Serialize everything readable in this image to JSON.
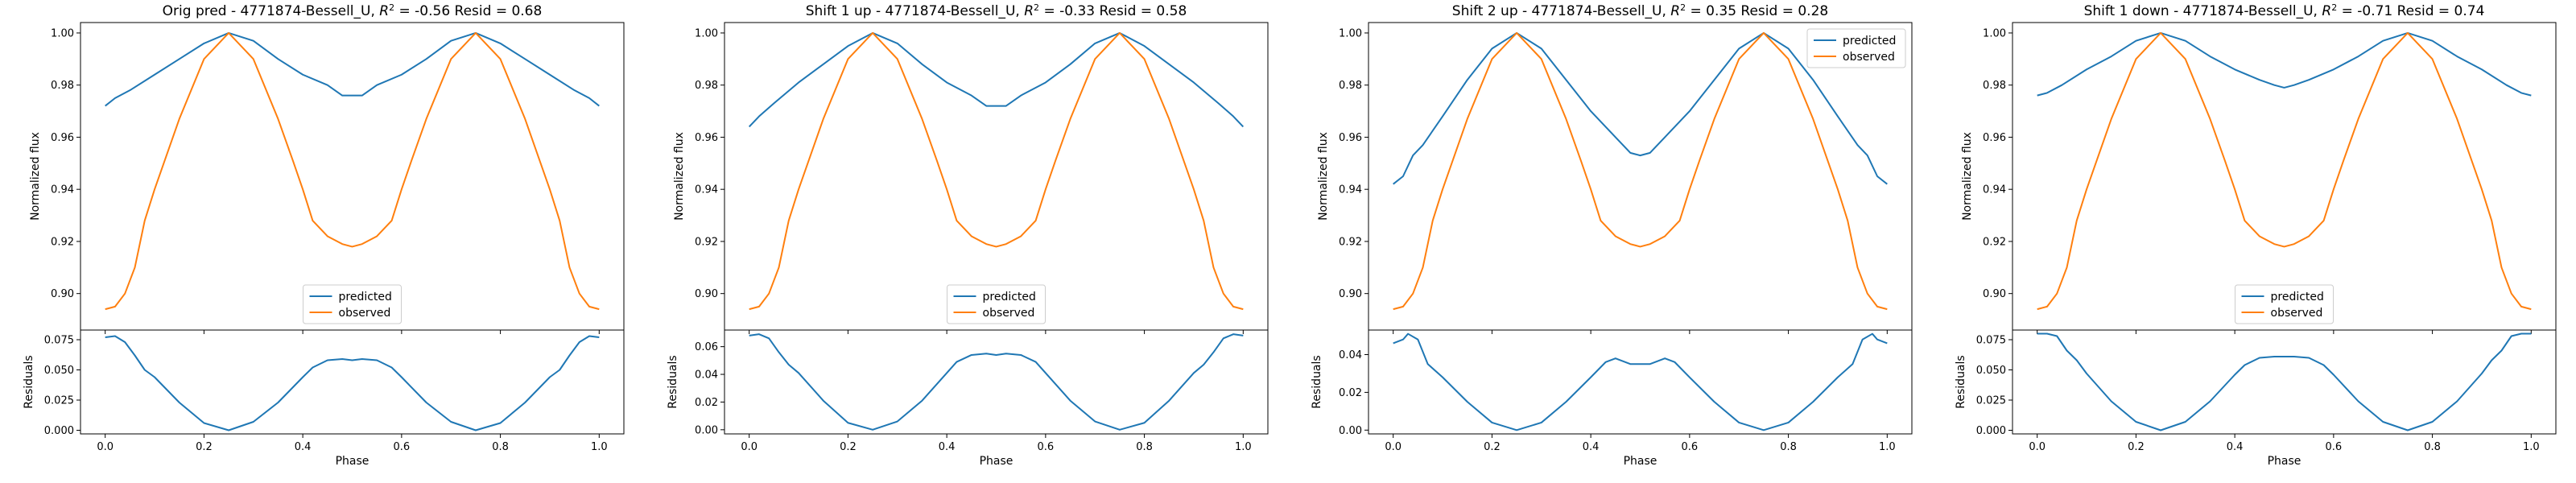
{
  "colors": {
    "predicted": "#1f77b4",
    "observed": "#ff7f0e",
    "residuals": "#1f77b4"
  },
  "chart_data": [
    {
      "type": "line",
      "title": "Orig pred - 4771874-Bessell_U, $R^2$ = -0.56 Resid = 0.68",
      "title_parts": [
        "Orig pred - 4771874-Bessell_U, ",
        "R",
        "2",
        " = -0.56 Resid = 0.68"
      ],
      "xlabel": "Phase",
      "ylabel_main": "Normalized flux",
      "ylabel_resid": "Residuals",
      "xlim": [
        -0.05,
        1.05
      ],
      "xticks": [
        0.0,
        0.2,
        0.4,
        0.6,
        0.8,
        1.0
      ],
      "xtick_labels": [
        "0.0",
        "0.2",
        "0.4",
        "0.6",
        "0.8",
        "1.0"
      ],
      "ylim_main": [
        0.886,
        1.004
      ],
      "yticks_main": [
        0.9,
        0.92,
        0.94,
        0.96,
        0.98,
        1.0
      ],
      "ytick_labels_main": [
        "0.90",
        "0.92",
        "0.94",
        "0.96",
        "0.98",
        "1.00"
      ],
      "ylim_resid": [
        -0.003,
        0.083
      ],
      "yticks_resid": [
        0.0,
        0.025,
        0.05,
        0.075
      ],
      "ytick_labels_resid": [
        "0.000",
        "0.025",
        "0.050",
        "0.075"
      ],
      "legend": {
        "location": "lower center",
        "entries": [
          "predicted",
          "observed"
        ]
      },
      "series": [
        {
          "name": "predicted",
          "x": [
            0,
            0.02,
            0.05,
            0.1,
            0.15,
            0.2,
            0.25,
            0.3,
            0.35,
            0.4,
            0.45,
            0.48,
            0.5,
            0.52,
            0.55,
            0.6,
            0.65,
            0.7,
            0.75,
            0.8,
            0.85,
            0.9,
            0.95,
            0.98,
            1.0
          ],
          "values": [
            0.972,
            0.975,
            0.978,
            0.984,
            0.99,
            0.996,
            1.0,
            0.997,
            0.99,
            0.984,
            0.98,
            0.976,
            0.976,
            0.976,
            0.98,
            0.984,
            0.99,
            0.997,
            1.0,
            0.996,
            0.99,
            0.984,
            0.978,
            0.975,
            0.972
          ]
        },
        {
          "name": "observed",
          "x": [
            0,
            0.02,
            0.04,
            0.06,
            0.08,
            0.1,
            0.15,
            0.2,
            0.25,
            0.3,
            0.35,
            0.38,
            0.4,
            0.42,
            0.45,
            0.48,
            0.5,
            0.52,
            0.55,
            0.58,
            0.6,
            0.62,
            0.65,
            0.7,
            0.75,
            0.8,
            0.85,
            0.9,
            0.92,
            0.94,
            0.96,
            0.98,
            1.0
          ],
          "values": [
            0.894,
            0.895,
            0.9,
            0.91,
            0.928,
            0.94,
            0.967,
            0.99,
            1.0,
            0.99,
            0.967,
            0.951,
            0.94,
            0.928,
            0.922,
            0.919,
            0.918,
            0.919,
            0.922,
            0.928,
            0.94,
            0.951,
            0.967,
            0.99,
            1.0,
            0.99,
            0.967,
            0.94,
            0.928,
            0.91,
            0.9,
            0.895,
            0.894
          ]
        },
        {
          "name": "residuals",
          "x": [
            0,
            0.02,
            0.04,
            0.06,
            0.08,
            0.1,
            0.15,
            0.2,
            0.25,
            0.3,
            0.35,
            0.4,
            0.42,
            0.45,
            0.48,
            0.5,
            0.52,
            0.55,
            0.58,
            0.6,
            0.65,
            0.7,
            0.75,
            0.8,
            0.85,
            0.9,
            0.92,
            0.94,
            0.96,
            0.98,
            1.0
          ],
          "values": [
            0.077,
            0.078,
            0.073,
            0.062,
            0.05,
            0.044,
            0.023,
            0.006,
            0.0,
            0.007,
            0.023,
            0.044,
            0.052,
            0.058,
            0.059,
            0.058,
            0.059,
            0.058,
            0.052,
            0.044,
            0.023,
            0.007,
            0.0,
            0.006,
            0.023,
            0.044,
            0.05,
            0.062,
            0.073,
            0.078,
            0.077
          ]
        }
      ]
    },
    {
      "type": "line",
      "title": "Shift 1 up - 4771874-Bessell_U, $R^2$ = -0.33 Resid = 0.58",
      "title_parts": [
        "Shift 1 up - 4771874-Bessell_U, ",
        "R",
        "2",
        " = -0.33 Resid = 0.58"
      ],
      "xlabel": "Phase",
      "ylabel_main": "Normalized flux",
      "ylabel_resid": "Residuals",
      "xlim": [
        -0.05,
        1.05
      ],
      "xticks": [
        0.0,
        0.2,
        0.4,
        0.6,
        0.8,
        1.0
      ],
      "xtick_labels": [
        "0.0",
        "0.2",
        "0.4",
        "0.6",
        "0.8",
        "1.0"
      ],
      "ylim_main": [
        0.886,
        1.004
      ],
      "yticks_main": [
        0.9,
        0.92,
        0.94,
        0.96,
        0.98,
        1.0
      ],
      "ytick_labels_main": [
        "0.90",
        "0.92",
        "0.94",
        "0.96",
        "0.98",
        "1.00"
      ],
      "ylim_resid": [
        -0.003,
        0.072
      ],
      "yticks_resid": [
        0.0,
        0.02,
        0.04,
        0.06
      ],
      "ytick_labels_resid": [
        "0.00",
        "0.02",
        "0.04",
        "0.06"
      ],
      "legend": {
        "location": "lower center",
        "entries": [
          "predicted",
          "observed"
        ]
      },
      "series": [
        {
          "name": "predicted",
          "x": [
            0,
            0.02,
            0.05,
            0.1,
            0.15,
            0.2,
            0.25,
            0.3,
            0.35,
            0.4,
            0.45,
            0.48,
            0.5,
            0.52,
            0.55,
            0.6,
            0.65,
            0.7,
            0.75,
            0.8,
            0.85,
            0.9,
            0.95,
            0.98,
            1.0
          ],
          "values": [
            0.964,
            0.968,
            0.973,
            0.981,
            0.988,
            0.995,
            1.0,
            0.996,
            0.988,
            0.981,
            0.976,
            0.972,
            0.972,
            0.972,
            0.976,
            0.981,
            0.988,
            0.996,
            1.0,
            0.995,
            0.988,
            0.981,
            0.973,
            0.968,
            0.964
          ]
        },
        {
          "name": "observed",
          "x": [
            0,
            0.02,
            0.04,
            0.06,
            0.08,
            0.1,
            0.15,
            0.2,
            0.25,
            0.3,
            0.35,
            0.38,
            0.4,
            0.42,
            0.45,
            0.48,
            0.5,
            0.52,
            0.55,
            0.58,
            0.6,
            0.62,
            0.65,
            0.7,
            0.75,
            0.8,
            0.85,
            0.9,
            0.92,
            0.94,
            0.96,
            0.98,
            1.0
          ],
          "values": [
            0.894,
            0.895,
            0.9,
            0.91,
            0.928,
            0.94,
            0.967,
            0.99,
            1.0,
            0.99,
            0.967,
            0.951,
            0.94,
            0.928,
            0.922,
            0.919,
            0.918,
            0.919,
            0.922,
            0.928,
            0.94,
            0.951,
            0.967,
            0.99,
            1.0,
            0.99,
            0.967,
            0.94,
            0.928,
            0.91,
            0.9,
            0.895,
            0.894
          ]
        },
        {
          "name": "residuals",
          "x": [
            0,
            0.02,
            0.04,
            0.06,
            0.08,
            0.1,
            0.15,
            0.2,
            0.25,
            0.3,
            0.35,
            0.4,
            0.42,
            0.45,
            0.48,
            0.5,
            0.52,
            0.55,
            0.58,
            0.6,
            0.65,
            0.7,
            0.75,
            0.8,
            0.85,
            0.9,
            0.92,
            0.94,
            0.96,
            0.98,
            1.0
          ],
          "values": [
            0.068,
            0.069,
            0.066,
            0.056,
            0.047,
            0.041,
            0.021,
            0.005,
            0.0,
            0.006,
            0.021,
            0.041,
            0.049,
            0.054,
            0.055,
            0.054,
            0.055,
            0.054,
            0.049,
            0.041,
            0.021,
            0.006,
            0.0,
            0.005,
            0.021,
            0.041,
            0.047,
            0.056,
            0.066,
            0.069,
            0.068
          ]
        }
      ]
    },
    {
      "type": "line",
      "title": "Shift 2 up - 4771874-Bessell_U, $R^2$ = 0.35 Resid = 0.28",
      "title_parts": [
        "Shift 2 up - 4771874-Bessell_U, ",
        "R",
        "2",
        " = 0.35 Resid = 0.28"
      ],
      "xlabel": "Phase",
      "ylabel_main": "Normalized flux",
      "ylabel_resid": "Residuals",
      "xlim": [
        -0.05,
        1.05
      ],
      "xticks": [
        0.0,
        0.2,
        0.4,
        0.6,
        0.8,
        1.0
      ],
      "xtick_labels": [
        "0.0",
        "0.2",
        "0.4",
        "0.6",
        "0.8",
        "1.0"
      ],
      "ylim_main": [
        0.886,
        1.004
      ],
      "yticks_main": [
        0.9,
        0.92,
        0.94,
        0.96,
        0.98,
        1.0
      ],
      "ytick_labels_main": [
        "0.90",
        "0.92",
        "0.94",
        "0.96",
        "0.98",
        "1.00"
      ],
      "ylim_resid": [
        -0.002,
        0.053
      ],
      "yticks_resid": [
        0.0,
        0.02,
        0.04
      ],
      "ytick_labels_resid": [
        "0.00",
        "0.02",
        "0.04"
      ],
      "legend": {
        "location": "upper right",
        "entries": [
          "predicted",
          "observed"
        ]
      },
      "series": [
        {
          "name": "predicted",
          "x": [
            0,
            0.02,
            0.04,
            0.06,
            0.1,
            0.15,
            0.2,
            0.25,
            0.3,
            0.35,
            0.4,
            0.45,
            0.48,
            0.5,
            0.52,
            0.55,
            0.6,
            0.65,
            0.7,
            0.75,
            0.8,
            0.85,
            0.9,
            0.94,
            0.96,
            0.98,
            1.0
          ],
          "values": [
            0.942,
            0.945,
            0.953,
            0.957,
            0.968,
            0.982,
            0.994,
            1.0,
            0.994,
            0.982,
            0.97,
            0.96,
            0.954,
            0.953,
            0.954,
            0.96,
            0.97,
            0.982,
            0.994,
            1.0,
            0.994,
            0.982,
            0.968,
            0.957,
            0.953,
            0.945,
            0.942
          ]
        },
        {
          "name": "observed",
          "x": [
            0,
            0.02,
            0.04,
            0.06,
            0.08,
            0.1,
            0.15,
            0.2,
            0.25,
            0.3,
            0.35,
            0.38,
            0.4,
            0.42,
            0.45,
            0.48,
            0.5,
            0.52,
            0.55,
            0.58,
            0.6,
            0.62,
            0.65,
            0.7,
            0.75,
            0.8,
            0.85,
            0.9,
            0.92,
            0.94,
            0.96,
            0.98,
            1.0
          ],
          "values": [
            0.894,
            0.895,
            0.9,
            0.91,
            0.928,
            0.94,
            0.967,
            0.99,
            1.0,
            0.99,
            0.967,
            0.951,
            0.94,
            0.928,
            0.922,
            0.919,
            0.918,
            0.919,
            0.922,
            0.928,
            0.94,
            0.951,
            0.967,
            0.99,
            1.0,
            0.99,
            0.967,
            0.94,
            0.928,
            0.91,
            0.9,
            0.895,
            0.894
          ]
        },
        {
          "name": "residuals",
          "x": [
            0,
            0.02,
            0.03,
            0.05,
            0.07,
            0.1,
            0.15,
            0.2,
            0.25,
            0.3,
            0.35,
            0.4,
            0.43,
            0.45,
            0.48,
            0.5,
            0.52,
            0.55,
            0.57,
            0.6,
            0.65,
            0.7,
            0.75,
            0.8,
            0.85,
            0.9,
            0.93,
            0.95,
            0.97,
            0.98,
            1.0
          ],
          "values": [
            0.046,
            0.048,
            0.051,
            0.048,
            0.035,
            0.028,
            0.015,
            0.004,
            0.0,
            0.004,
            0.015,
            0.028,
            0.036,
            0.038,
            0.035,
            0.035,
            0.035,
            0.038,
            0.036,
            0.028,
            0.015,
            0.004,
            0.0,
            0.004,
            0.015,
            0.028,
            0.035,
            0.048,
            0.051,
            0.048,
            0.046
          ]
        }
      ]
    },
    {
      "type": "line",
      "title": "Shift 1 down - 4771874-Bessell_U, $R^2$ = -0.71 Resid = 0.74",
      "title_parts": [
        "Shift 1 down - 4771874-Bessell_U, ",
        "R",
        "2",
        " = -0.71 Resid = 0.74"
      ],
      "xlabel": "Phase",
      "ylabel_main": "Normalized flux",
      "ylabel_resid": "Residuals",
      "xlim": [
        -0.05,
        1.05
      ],
      "xticks": [
        0.0,
        0.2,
        0.4,
        0.6,
        0.8,
        1.0
      ],
      "xtick_labels": [
        "0.0",
        "0.2",
        "0.4",
        "0.6",
        "0.8",
        "1.0"
      ],
      "ylim_main": [
        0.886,
        1.004
      ],
      "yticks_main": [
        0.9,
        0.92,
        0.94,
        0.96,
        0.98,
        1.0
      ],
      "ytick_labels_main": [
        "0.90",
        "0.92",
        "0.94",
        "0.96",
        "0.98",
        "1.00"
      ],
      "ylim_resid": [
        -0.003,
        0.083
      ],
      "yticks_resid": [
        0.0,
        0.025,
        0.05,
        0.075
      ],
      "ytick_labels_resid": [
        "0.000",
        "0.025",
        "0.050",
        "0.075"
      ],
      "legend": {
        "location": "lower center",
        "entries": [
          "predicted",
          "observed"
        ]
      },
      "series": [
        {
          "name": "predicted",
          "x": [
            0,
            0.02,
            0.05,
            0.1,
            0.15,
            0.2,
            0.25,
            0.3,
            0.35,
            0.4,
            0.45,
            0.48,
            0.5,
            0.52,
            0.55,
            0.6,
            0.65,
            0.7,
            0.75,
            0.8,
            0.85,
            0.9,
            0.95,
            0.98,
            1.0
          ],
          "values": [
            0.976,
            0.977,
            0.98,
            0.986,
            0.991,
            0.997,
            1.0,
            0.997,
            0.991,
            0.986,
            0.982,
            0.98,
            0.979,
            0.98,
            0.982,
            0.986,
            0.991,
            0.997,
            1.0,
            0.997,
            0.991,
            0.986,
            0.98,
            0.977,
            0.976
          ]
        },
        {
          "name": "observed",
          "x": [
            0,
            0.02,
            0.04,
            0.06,
            0.08,
            0.1,
            0.15,
            0.2,
            0.25,
            0.3,
            0.35,
            0.38,
            0.4,
            0.42,
            0.45,
            0.48,
            0.5,
            0.52,
            0.55,
            0.58,
            0.6,
            0.62,
            0.65,
            0.7,
            0.75,
            0.8,
            0.85,
            0.9,
            0.92,
            0.94,
            0.96,
            0.98,
            1.0
          ],
          "values": [
            0.894,
            0.895,
            0.9,
            0.91,
            0.928,
            0.94,
            0.967,
            0.99,
            1.0,
            0.99,
            0.967,
            0.951,
            0.94,
            0.928,
            0.922,
            0.919,
            0.918,
            0.919,
            0.922,
            0.928,
            0.94,
            0.951,
            0.967,
            0.99,
            1.0,
            0.99,
            0.967,
            0.94,
            0.928,
            0.91,
            0.9,
            0.895,
            0.894
          ]
        },
        {
          "name": "residuals",
          "x": [
            0,
            0.02,
            0.04,
            0.06,
            0.08,
            0.1,
            0.15,
            0.2,
            0.25,
            0.3,
            0.35,
            0.4,
            0.42,
            0.45,
            0.48,
            0.5,
            0.52,
            0.55,
            0.58,
            0.6,
            0.65,
            0.7,
            0.75,
            0.8,
            0.85,
            0.9,
            0.92,
            0.94,
            0.96,
            0.98,
            1.0
          ],
          "values": [
            0.08,
            0.08,
            0.078,
            0.066,
            0.058,
            0.047,
            0.024,
            0.007,
            0.0,
            0.007,
            0.024,
            0.046,
            0.054,
            0.06,
            0.061,
            0.061,
            0.061,
            0.06,
            0.054,
            0.046,
            0.024,
            0.007,
            0.0,
            0.007,
            0.024,
            0.047,
            0.058,
            0.066,
            0.078,
            0.08,
            0.08
          ]
        }
      ]
    }
  ]
}
